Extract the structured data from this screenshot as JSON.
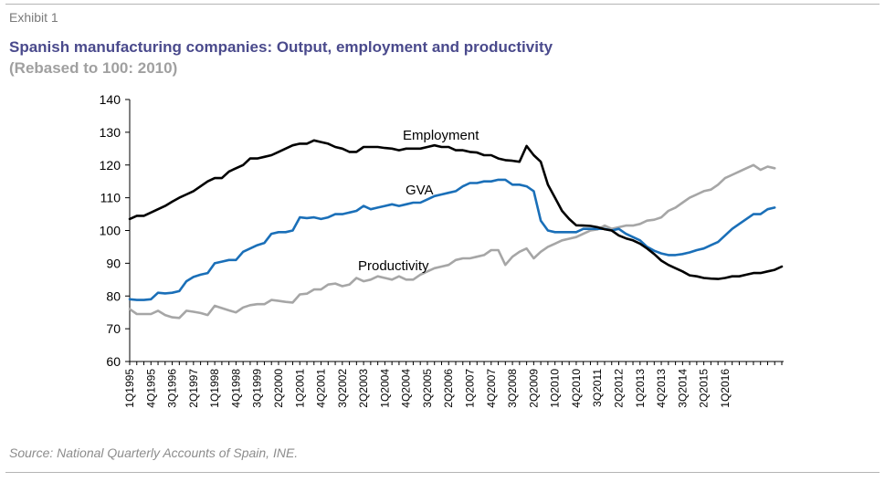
{
  "header": {
    "exhibit": "Exhibit 1",
    "title": "Spanish manufacturing companies: Output, employment and productivity",
    "subtitle": "(Rebased to 100: 2010)"
  },
  "footer": {
    "source": "Source: National Quarterly Accounts of Spain, INE."
  },
  "colors": {
    "employment": "#000000",
    "gva": "#1a6fb8",
    "productivity": "#a6a6a6",
    "title": "#4a4a8c"
  },
  "chart_data": {
    "type": "line",
    "x_start": "1Q1995",
    "x_end": "4Q2016",
    "ylim": [
      60,
      140
    ],
    "yticks": [
      60,
      70,
      80,
      90,
      100,
      110,
      120,
      130,
      140
    ],
    "xticks": [
      "1Q1995",
      "4Q1995",
      "3Q1996",
      "2Q1997",
      "1Q1998",
      "4Q1998",
      "3Q1999",
      "2Q2000",
      "1Q2001",
      "4Q2001",
      "3Q2002",
      "2Q2003",
      "1Q2004",
      "4Q2004",
      "3Q2005",
      "2Q2006",
      "1Q2007",
      "4Q2007",
      "3Q2008",
      "2Q2009",
      "1Q2010",
      "4Q2010",
      "3Q2011",
      "2Q2012",
      "1Q2013",
      "4Q2013",
      "3Q2014",
      "2Q2015",
      "1Q2016"
    ],
    "grid": false,
    "legend": "inline labels",
    "series": [
      {
        "name": "Employment",
        "values": [
          103.5,
          104.5,
          104.5,
          105.5,
          106.5,
          107.5,
          108.8,
          110,
          111,
          112,
          113.5,
          115,
          116,
          116,
          118,
          119,
          120,
          122,
          122,
          122.5,
          123,
          124,
          125,
          126,
          126.5,
          126.5,
          127.5,
          127,
          126.5,
          125.5,
          125,
          124,
          124,
          125.5,
          125.5,
          125.5,
          125.2,
          125,
          124.5,
          125,
          125,
          125,
          125.5,
          126,
          125.5,
          125.5,
          124.5,
          124.5,
          124,
          123.8,
          123,
          123,
          122,
          121.5,
          121.3,
          121,
          125.8,
          123,
          121,
          114,
          110,
          106,
          103.5,
          101.6,
          101.5,
          101.4,
          101,
          100.4,
          100,
          98.5,
          97.6,
          97,
          96,
          94.5,
          92.8,
          90.8,
          89.5,
          88.5,
          87.5,
          86.3,
          86,
          85.5,
          85.3,
          85.2,
          85.5,
          86,
          86,
          86.5,
          87,
          87,
          87.5,
          88,
          89
        ]
      },
      {
        "name": "GVA",
        "values": [
          79,
          78.8,
          78.8,
          79,
          81,
          80.8,
          81,
          81.5,
          84.5,
          85.8,
          86.5,
          87,
          90,
          90.5,
          91,
          91,
          93.5,
          94.5,
          95.5,
          96.2,
          99,
          99.5,
          99.5,
          100,
          104,
          103.8,
          104,
          103.5,
          104,
          105,
          105,
          105.5,
          106,
          107.5,
          106.5,
          107,
          107.5,
          108,
          107.5,
          108,
          108.5,
          108.5,
          109.5,
          110.5,
          111,
          111.5,
          112,
          113.5,
          114.5,
          114.5,
          115,
          115,
          115.5,
          115.5,
          114,
          114,
          113.5,
          112,
          103,
          100,
          99.5,
          99.5,
          99.5,
          99.5,
          100.5,
          100.5,
          100.5,
          100.5,
          100,
          100.5,
          99,
          98,
          97,
          95,
          93.8,
          93,
          92.5,
          92.5,
          92.8,
          93.3,
          94,
          94.5,
          95.5,
          96.5,
          98.5,
          100.5,
          102,
          103.5,
          105,
          105,
          106.5,
          107
        ]
      },
      {
        "name": "Productivity",
        "values": [
          76,
          74.5,
          74.5,
          74.5,
          75.5,
          74.2,
          73.5,
          73.3,
          75.5,
          75.2,
          74.8,
          74.2,
          77,
          76.3,
          75.6,
          75,
          76.5,
          77.2,
          77.5,
          77.5,
          78.8,
          78.5,
          78.2,
          78,
          80.5,
          80.7,
          82,
          82,
          83.5,
          83.8,
          83,
          83.5,
          85.5,
          84.5,
          85,
          86,
          85.5,
          85,
          86,
          85,
          85,
          86.5,
          87.5,
          88.5,
          89,
          89.5,
          91,
          91.5,
          91.5,
          92,
          92.5,
          94,
          94,
          89.5,
          92,
          93.5,
          94.5,
          91.5,
          93.5,
          95,
          96,
          97,
          97.5,
          98,
          99,
          100,
          100.3,
          101.5,
          100.5,
          101,
          101.5,
          101.5,
          102,
          103,
          103.3,
          104,
          106,
          107,
          108.5,
          110,
          111,
          112,
          112.5,
          114,
          116,
          117,
          118,
          119,
          120,
          118.5,
          119.5,
          119
        ]
      }
    ],
    "annotations": [
      {
        "text": "Employment",
        "series": "Employment"
      },
      {
        "text": "GVA",
        "series": "GVA"
      },
      {
        "text": "Productivity",
        "series": "Productivity"
      }
    ]
  }
}
